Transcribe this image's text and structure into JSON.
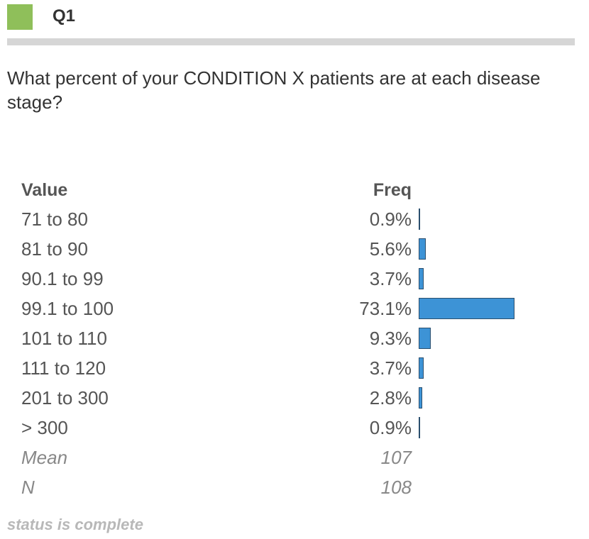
{
  "header": {
    "question_id": "Q1",
    "accent_color": "#8fbf5a"
  },
  "question": {
    "text": "What percent of your CONDITION X patients are at each disease stage?"
  },
  "table": {
    "value_header": "Value",
    "freq_header": "Freq"
  },
  "chart_data": {
    "type": "bar",
    "orientation": "horizontal",
    "bar_color": "#3d93d6",
    "categories": [
      "71 to 80",
      "81 to 90",
      "90.1 to 99",
      "99.1 to 100",
      "101 to 110",
      "111 to 120",
      "201 to 300",
      "> 300"
    ],
    "values": [
      0.9,
      5.6,
      3.7,
      73.1,
      9.3,
      3.7,
      2.8,
      0.9
    ],
    "labels": [
      "0.9%",
      "5.6%",
      "3.7%",
      "73.1%",
      "9.3%",
      "3.7%",
      "2.8%",
      "0.9%"
    ],
    "xlim": [
      0,
      100
    ]
  },
  "stats": {
    "mean_label": "Mean",
    "mean_value": "107",
    "n_label": "N",
    "n_value": "108"
  },
  "status": {
    "text": "status is complete"
  }
}
